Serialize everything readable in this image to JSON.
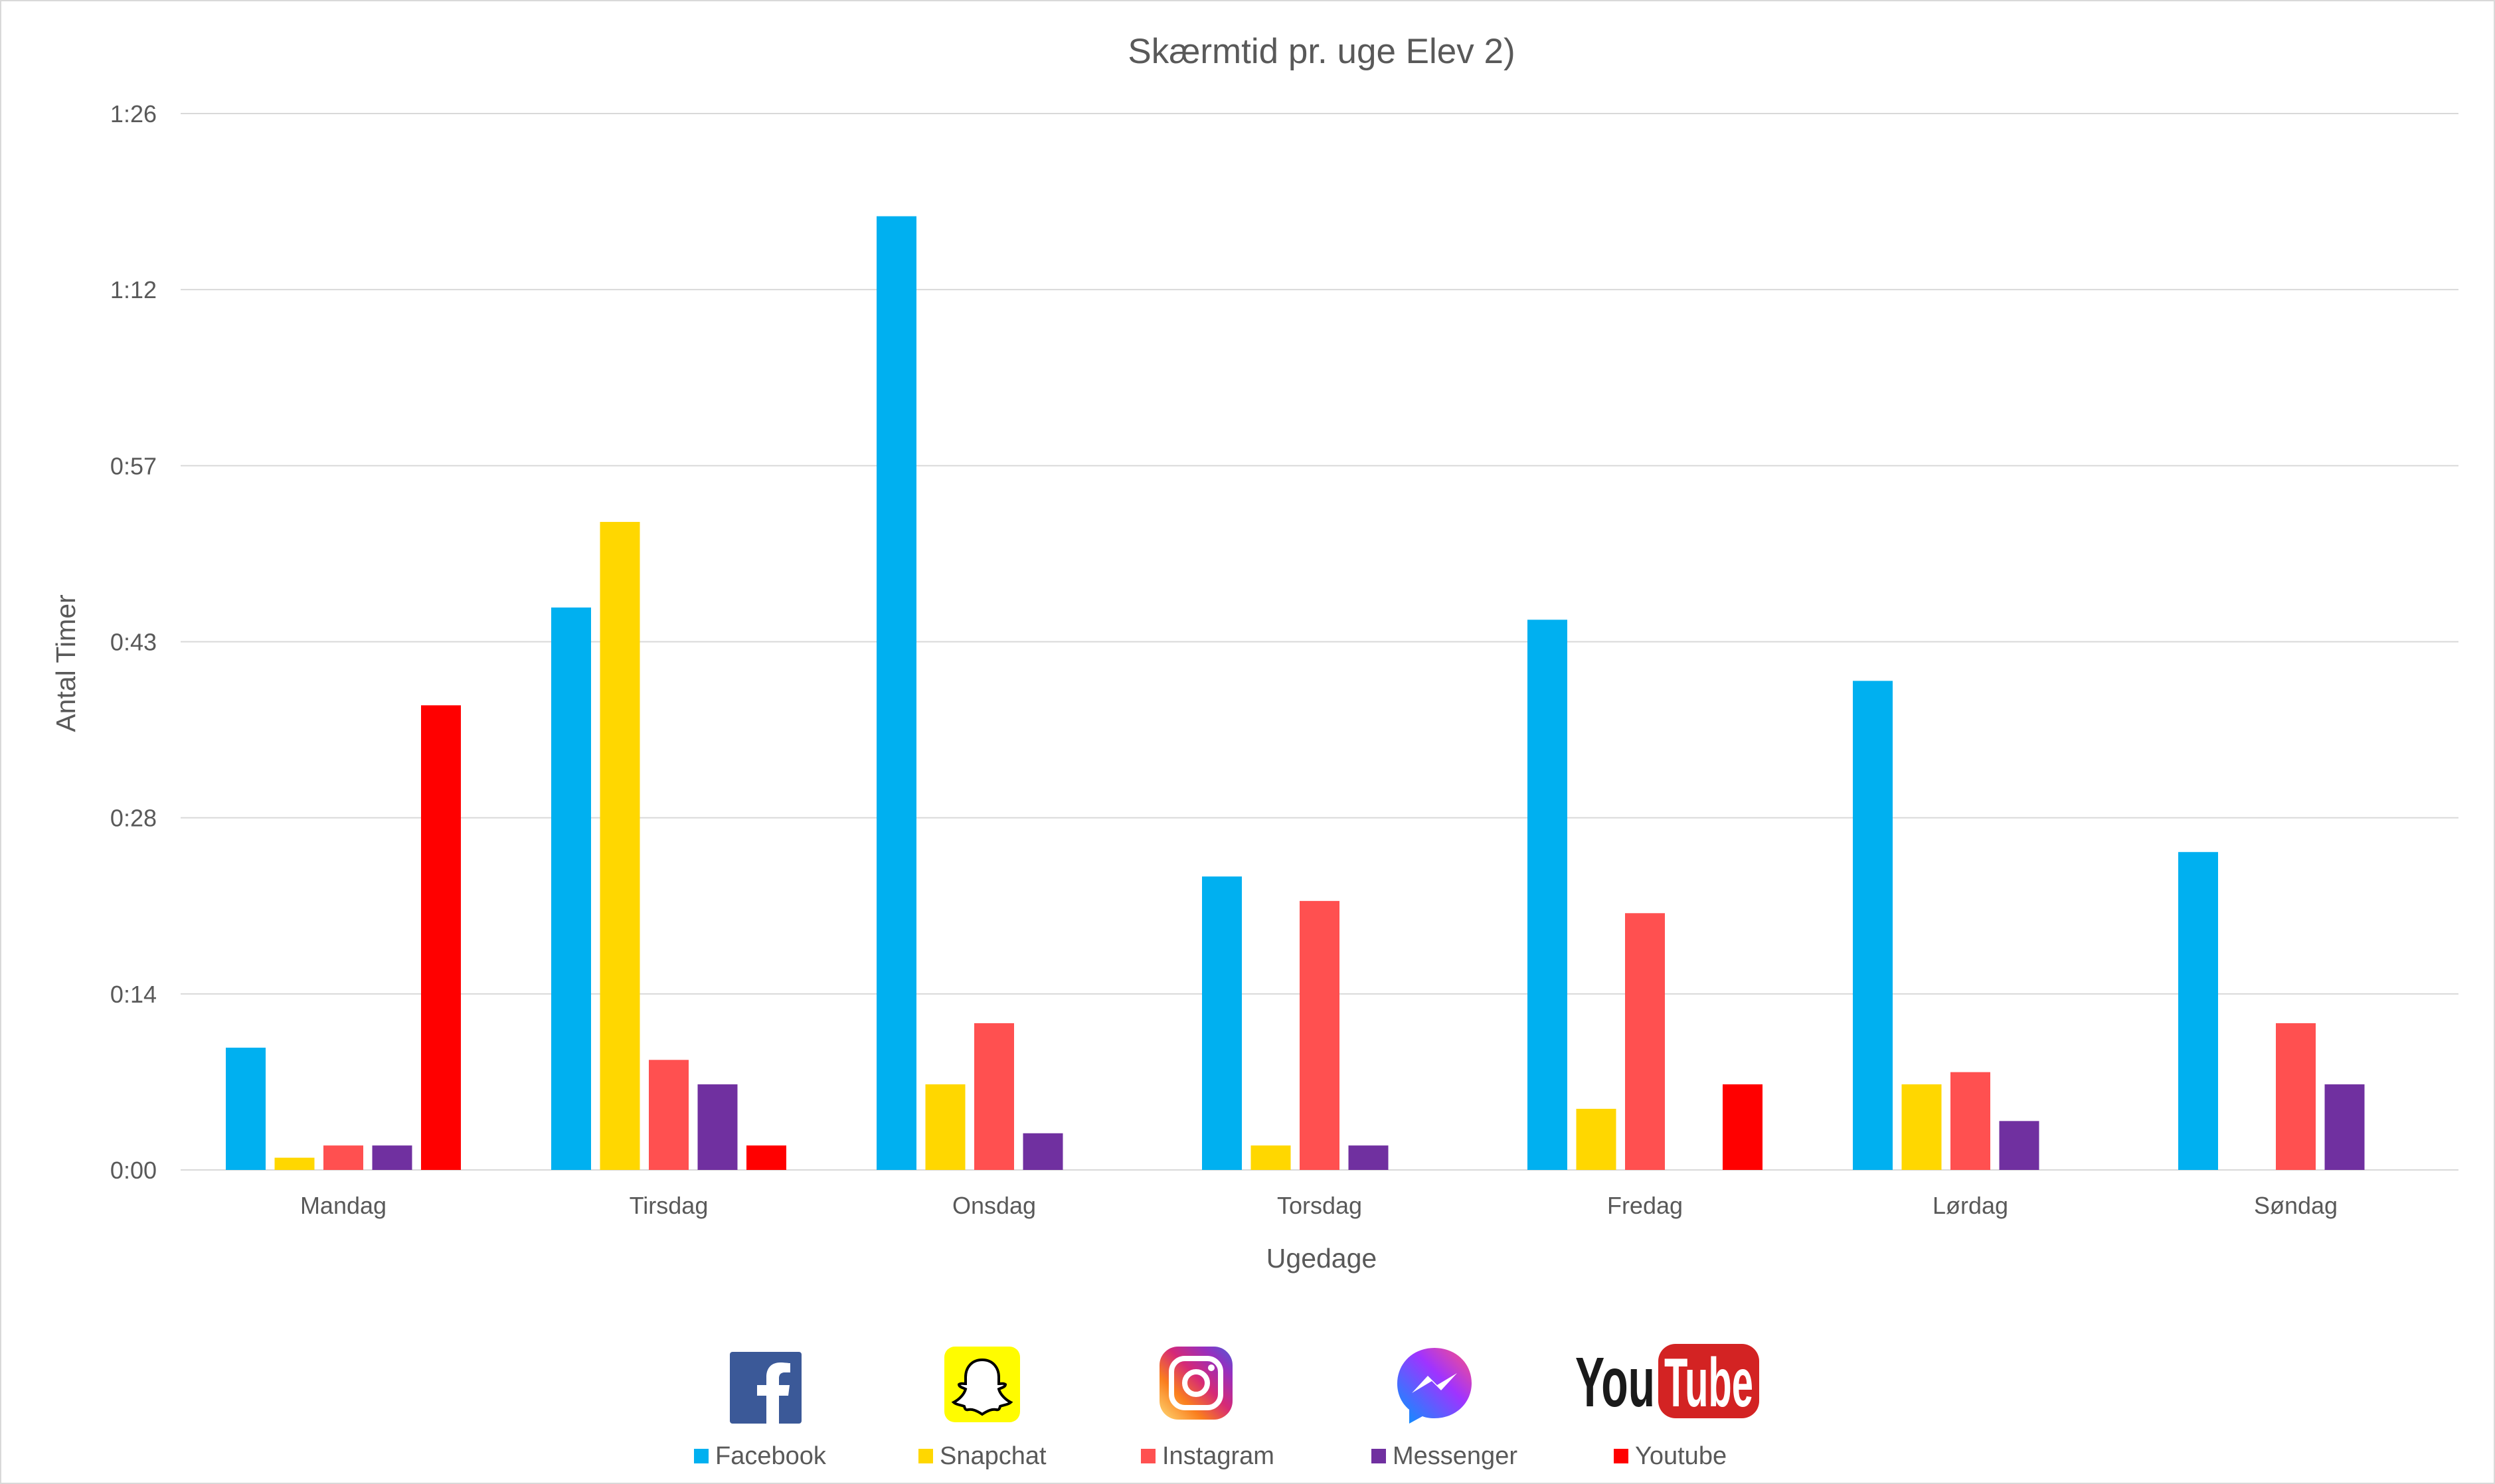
{
  "chart_data": {
    "type": "bar",
    "title": "Skærmtid pr. uge Elev 2)",
    "xlabel": "Ugedage",
    "ylabel": "Antal Timer",
    "categories": [
      "Mandag",
      "Tirsdag",
      "Onsdag",
      "Torsdag",
      "Fredag",
      "Lørdag",
      "Søndag"
    ],
    "y_ticks": [
      "0:00",
      "0:14",
      "0:28",
      "0:43",
      "0:57",
      "1:12",
      "1:26"
    ],
    "ylim_minutes": [
      0,
      86.4
    ],
    "unit": "minutes",
    "grid": true,
    "legend_position": "bottom",
    "series": [
      {
        "name": "Facebook",
        "color": "#00B0F0",
        "icon": "facebook-icon",
        "values": [
          10,
          46,
          78,
          24,
          45,
          40,
          26
        ]
      },
      {
        "name": "Snapchat",
        "color": "#FFD700",
        "icon": "snapchat-icon",
        "values": [
          1,
          53,
          7,
          2,
          5,
          7,
          null
        ]
      },
      {
        "name": "Instagram",
        "color": "#FF5050",
        "icon": "instagram-icon",
        "values": [
          2,
          9,
          12,
          22,
          21,
          8,
          12
        ]
      },
      {
        "name": "Messenger",
        "color": "#7030A0",
        "icon": "messenger-icon",
        "values": [
          2,
          7,
          3,
          2,
          null,
          4,
          7
        ]
      },
      {
        "name": "Youtube",
        "color": "#FF0000",
        "icon": "youtube-icon",
        "values": [
          38,
          2,
          null,
          null,
          7,
          null,
          null
        ]
      }
    ]
  },
  "logos": {
    "youtube_text_you": "You",
    "youtube_text_tube": "Tube"
  }
}
